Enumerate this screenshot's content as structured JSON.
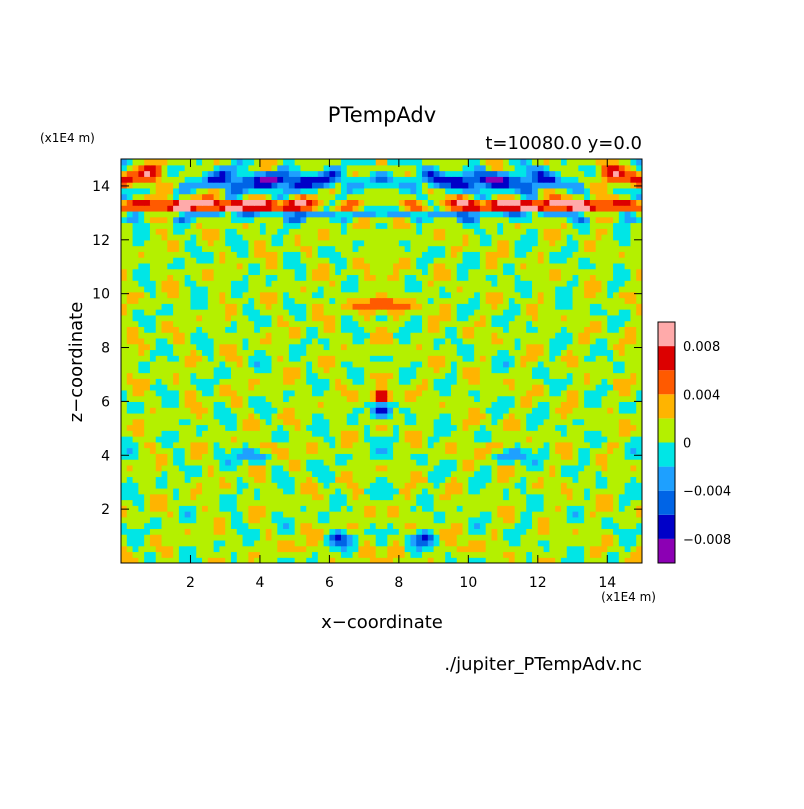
{
  "chart_data": {
    "type": "heatmap",
    "title": "PTempAdv",
    "subtitle": "t=10080.0 y=0.0",
    "xlabel": "x−coordinate",
    "ylabel": "z−coordinate",
    "x_unit": "(x1E4 m)",
    "y_unit": "(x1E4 m)",
    "file_label": "./jupiter_PTempAdv.nc",
    "xlim": [
      0,
      15
    ],
    "ylim": [
      0,
      15
    ],
    "x_ticks": [
      2,
      4,
      6,
      8,
      10,
      12,
      14
    ],
    "y_ticks": [
      2,
      4,
      6,
      8,
      10,
      12,
      14
    ],
    "colorbar": {
      "levels": [
        -0.01,
        -0.008,
        -0.006,
        -0.004,
        -0.002,
        0,
        0.002,
        0.004,
        0.006,
        0.008,
        0.01
      ],
      "colors": [
        "#8c00b4",
        "#0000c8",
        "#0064e6",
        "#1ea0ff",
        "#00e6e6",
        "#b4f000",
        "#ffb400",
        "#ff5a00",
        "#dc0000",
        "#ffaaaa"
      ],
      "tick_values": [
        0.008,
        0.004,
        0,
        -0.004,
        -0.008
      ],
      "tick_labels": [
        "0.008",
        "0.004",
        "0",
        "−0.004",
        "−0.008"
      ]
    },
    "grid": false,
    "legend": "right"
  }
}
